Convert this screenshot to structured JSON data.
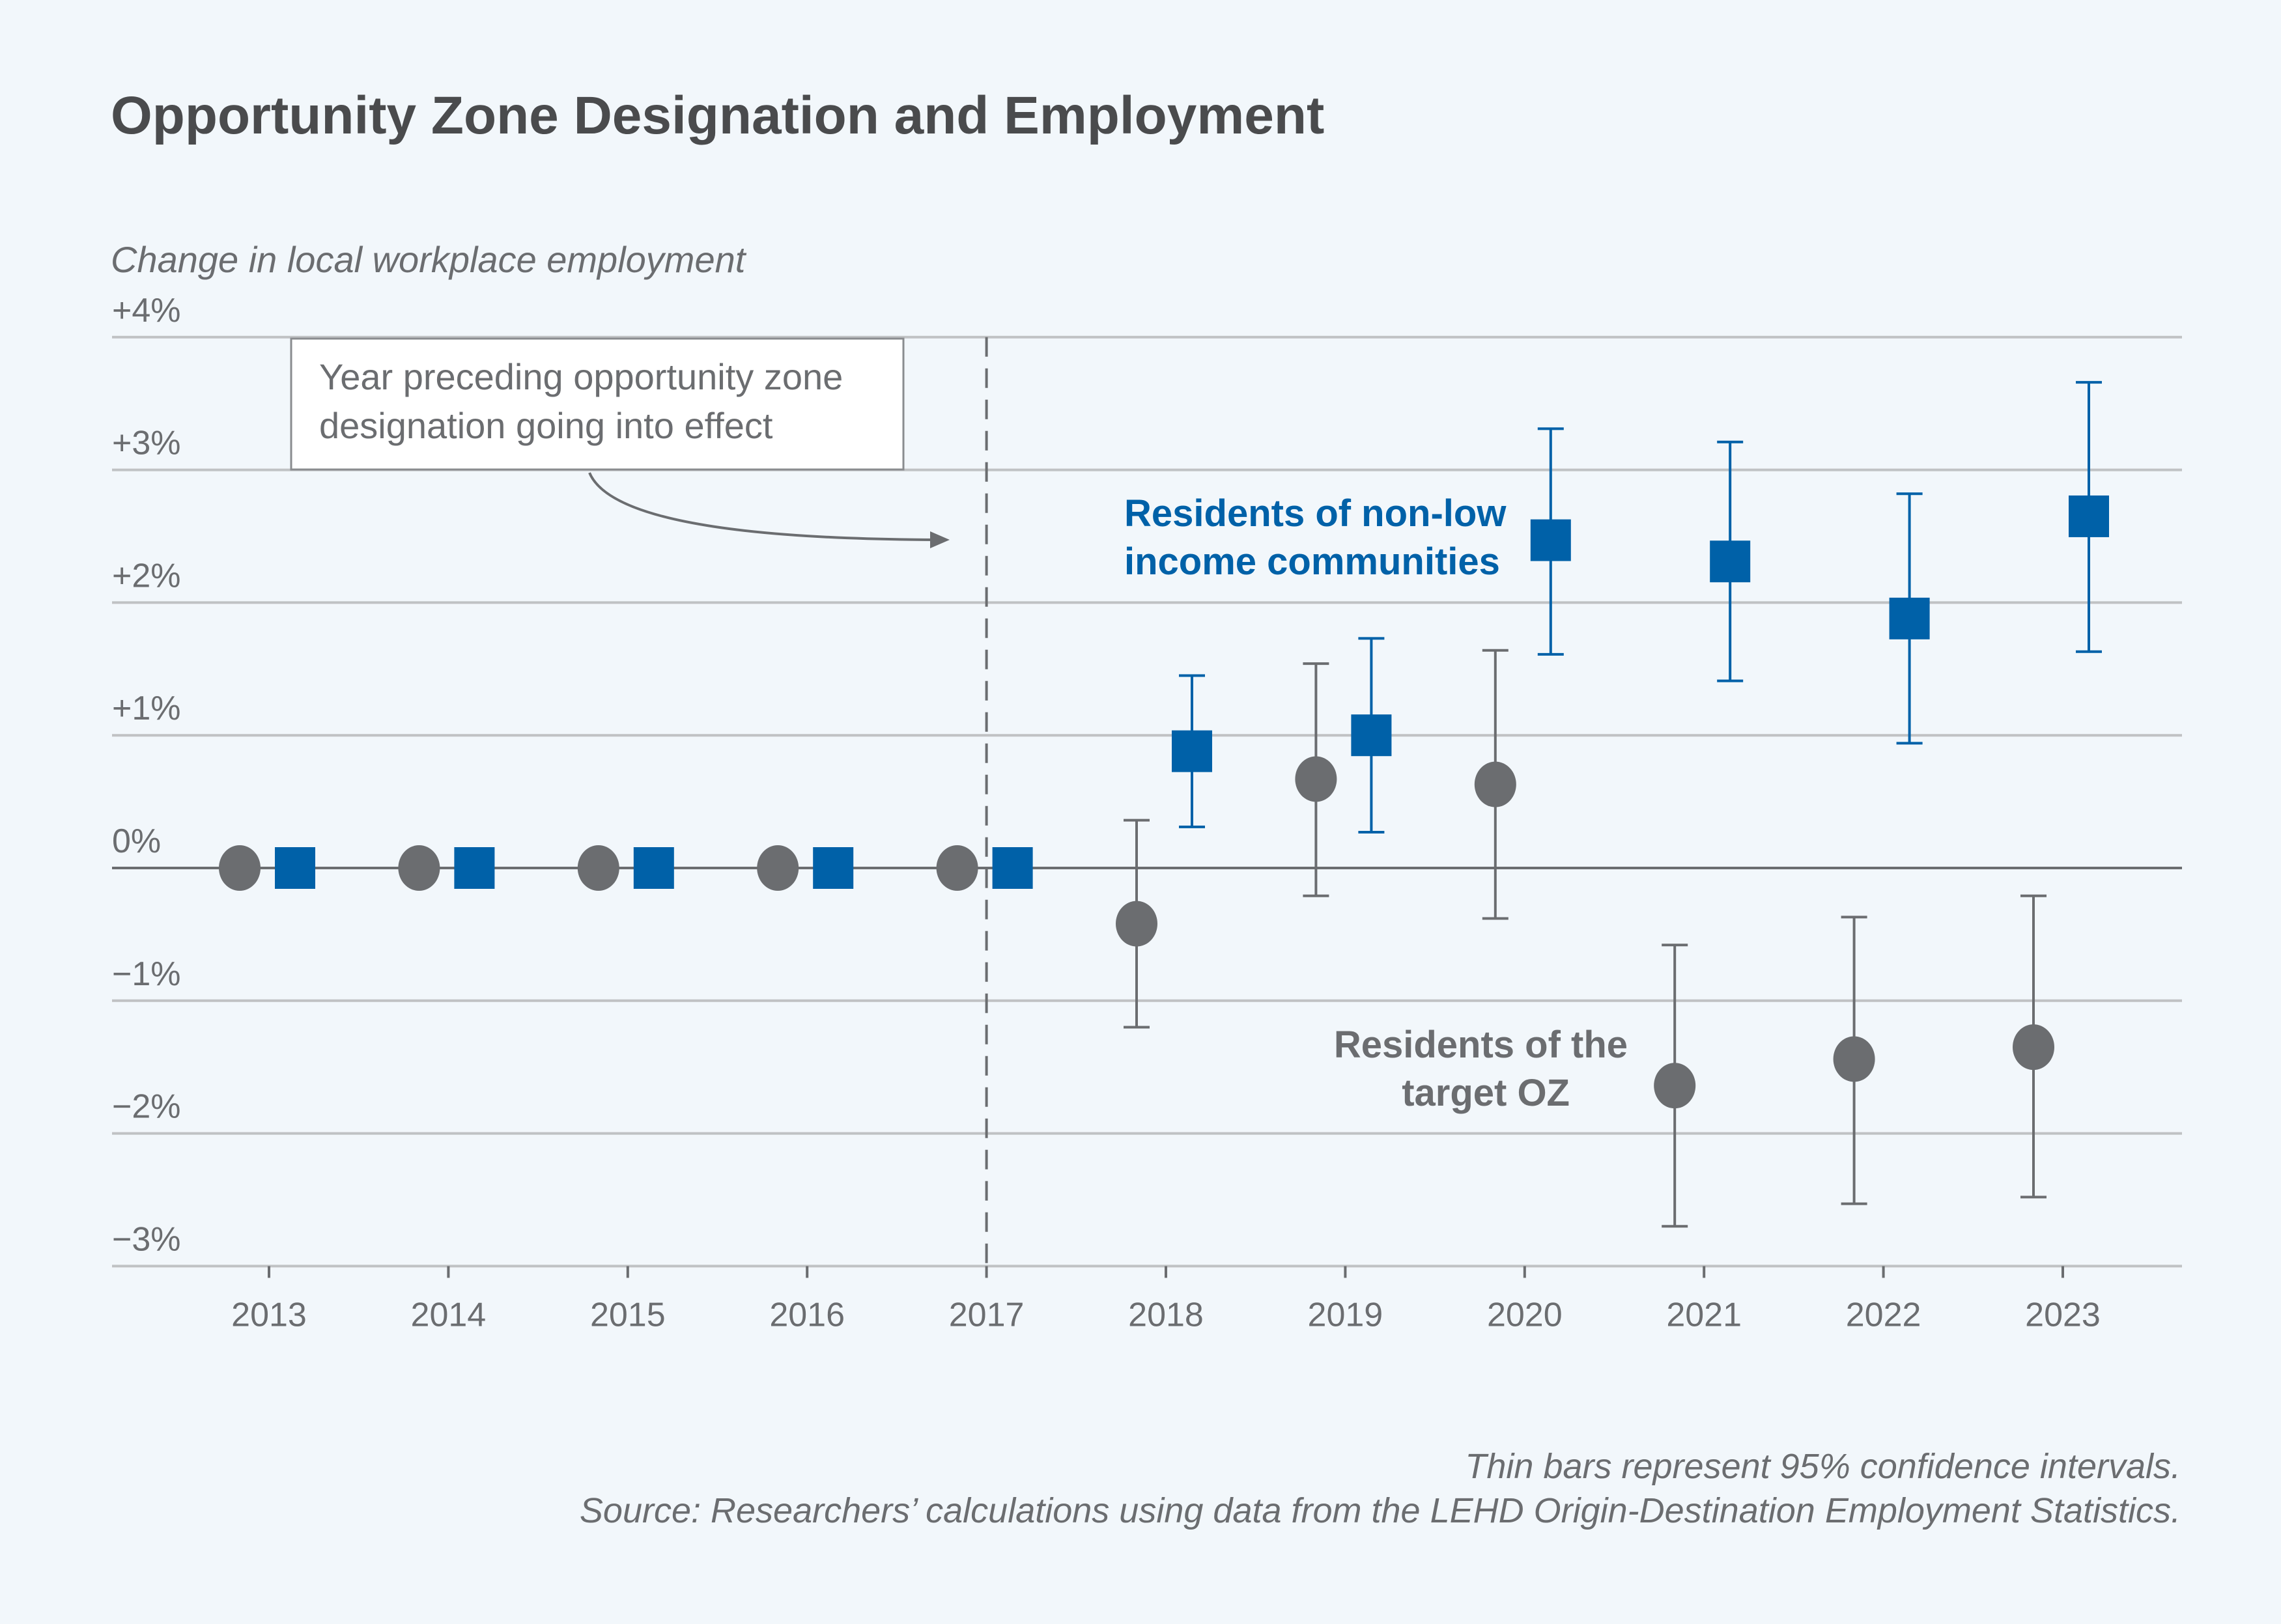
{
  "chart_data": {
    "type": "scatter",
    "title": "Opportunity Zone Designation and Employment",
    "ylabel": "Change in local workplace employment",
    "xlabel": "",
    "ylim": [
      -3,
      4
    ],
    "y_ticks": [
      4,
      3,
      2,
      1,
      0,
      -1,
      -2,
      -3
    ],
    "y_tick_labels": [
      "+4%",
      "+3%",
      "+2%",
      "+1%",
      "0%",
      "−1%",
      "−2%",
      "−3%"
    ],
    "categories": [
      "2013",
      "2014",
      "2015",
      "2016",
      "2017",
      "2018",
      "2019",
      "2020",
      "2021",
      "2022",
      "2023"
    ],
    "grid": "horizontal",
    "reference_line": {
      "x": "2017",
      "style": "dashed"
    },
    "annotation": {
      "lines": [
        "Year preceding opportunity zone",
        "designation going into effect"
      ]
    },
    "series": [
      {
        "name": "Residents of the target OZ",
        "label_lines": [
          "Residents of the",
          "target OZ"
        ],
        "marker": "circle",
        "color": "#6b6d70",
        "values": [
          0,
          0,
          0,
          0,
          0,
          -0.42,
          0.67,
          0.63,
          -1.64,
          -1.44,
          -1.35
        ],
        "ci_low": [
          null,
          null,
          null,
          null,
          null,
          -1.2,
          -0.21,
          -0.38,
          -2.7,
          -2.53,
          -2.48
        ],
        "ci_high": [
          null,
          null,
          null,
          null,
          null,
          0.36,
          1.54,
          1.64,
          -0.58,
          -0.37,
          -0.21
        ]
      },
      {
        "name": "Residents of non-low income communities",
        "label_lines": [
          "Residents of non-low",
          "income communities"
        ],
        "marker": "square",
        "color": "#0061a8",
        "values": [
          0,
          0,
          0,
          0,
          0,
          0.88,
          1.0,
          2.47,
          2.31,
          1.88,
          2.65
        ],
        "ci_low": [
          null,
          null,
          null,
          null,
          null,
          0.31,
          0.27,
          1.61,
          1.41,
          0.94,
          1.63
        ],
        "ci_high": [
          null,
          null,
          null,
          null,
          null,
          1.45,
          1.73,
          3.31,
          3.21,
          2.82,
          3.66
        ]
      }
    ],
    "notes": [
      "Thin bars represent 95% confidence intervals.",
      "Source: Researchers’ calculations using data from the LEHD Origin-Destination Employment Statistics."
    ]
  }
}
